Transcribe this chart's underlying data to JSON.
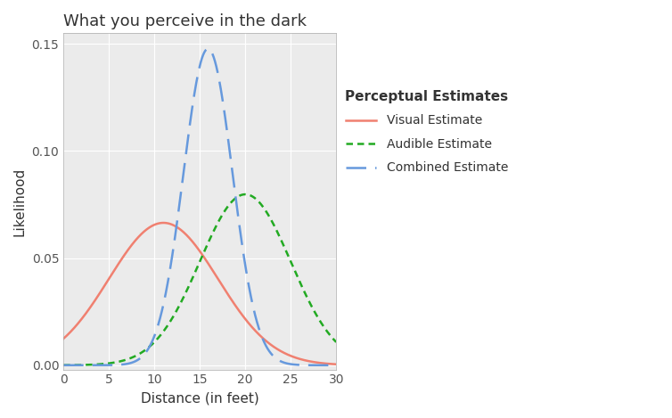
{
  "title": "What you perceive in the dark",
  "xlabel": "Distance (in feet)",
  "ylabel": "Likelihood",
  "legend_title": "Perceptual Estimates",
  "xlim": [
    0,
    30
  ],
  "ylim": [
    -0.002,
    0.155
  ],
  "yticks": [
    0.0,
    0.05,
    0.1,
    0.15
  ],
  "xticks": [
    0,
    5,
    10,
    15,
    20,
    25,
    30
  ],
  "visual": {
    "mean": 11.0,
    "sigma": 6.0,
    "color": "#F08070",
    "linestyle": "solid",
    "linewidth": 1.8,
    "label": "Visual Estimate"
  },
  "audible": {
    "mean": 20.0,
    "sigma": 5.0,
    "color": "#22AA22",
    "linestyle": "dashed",
    "linewidth": 1.8,
    "label": "Audible Estimate",
    "dashes": [
      3,
      2
    ]
  },
  "combined": {
    "mean": 15.9,
    "sigma": 2.7,
    "color": "#6699DD",
    "linestyle": "dashed",
    "linewidth": 1.8,
    "label": "Combined Estimate",
    "dashes": [
      9,
      4
    ]
  },
  "panel_color": "#EBEBEB",
  "background_color": "#FFFFFF",
  "grid_color": "#FFFFFF",
  "title_fontsize": 13,
  "label_fontsize": 11,
  "tick_fontsize": 10,
  "legend_fontsize": 10
}
